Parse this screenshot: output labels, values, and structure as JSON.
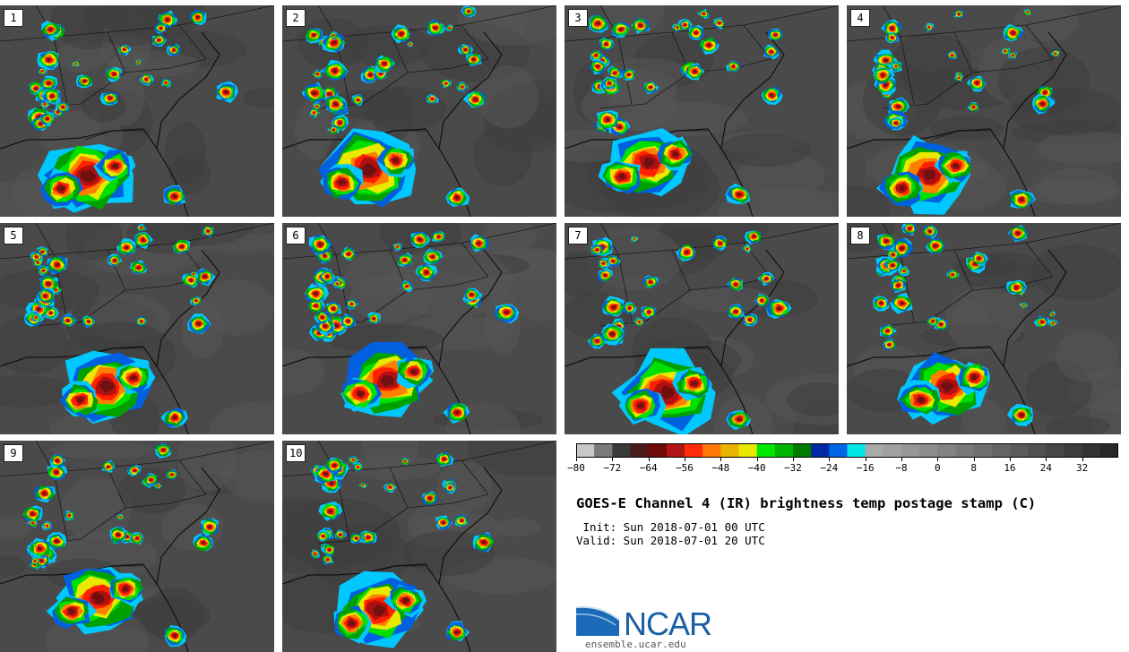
{
  "figure": {
    "title": "GOES-E Channel 4 (IR) brightness temp postage stamp (C)",
    "init": " Init: Sun 2018-07-01 00 UTC",
    "valid": "Valid: Sun 2018-07-01 20 UTC"
  },
  "panels": [
    {
      "label": "1"
    },
    {
      "label": "2"
    },
    {
      "label": "3"
    },
    {
      "label": "4"
    },
    {
      "label": "5"
    },
    {
      "label": "6"
    },
    {
      "label": "7"
    },
    {
      "label": "8"
    },
    {
      "label": "9"
    },
    {
      "label": "10"
    }
  ],
  "colorbar": {
    "tick_labels": [
      "-80",
      "-72",
      "-64",
      "-56",
      "-48",
      "-40",
      "-32",
      "-24",
      "-16",
      "-8",
      "0",
      "8",
      "16",
      "24",
      "32"
    ],
    "min": -80,
    "max": 40,
    "step": 4,
    "colors": [
      "#c8c8c8",
      "#7a7a7a",
      "#3a3a3a",
      "#4a1a1a",
      "#6e0a0a",
      "#b01414",
      "#ff2a0a",
      "#ff7a0a",
      "#e8b400",
      "#e8e800",
      "#00e800",
      "#00b400",
      "#007a00",
      "#0028a0",
      "#0064e6",
      "#00e6e6",
      "#aaaaaa",
      "#a0a0a0",
      "#969696",
      "#8c8c8c",
      "#828282",
      "#787878",
      "#6e6e6e",
      "#646464",
      "#5a5a5a",
      "#505050",
      "#464646",
      "#3c3c3c",
      "#323232",
      "#282828"
    ]
  },
  "logo": {
    "name": "NCAR",
    "url": "ensemble.ucar.edu"
  }
}
